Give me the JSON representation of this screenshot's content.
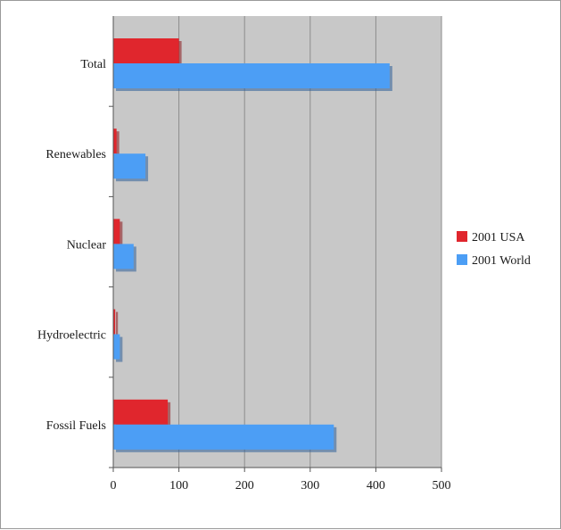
{
  "chart_data": {
    "type": "bar",
    "orientation": "horizontal",
    "title": "",
    "xlabel": "",
    "ylabel": "",
    "categories": [
      "Total",
      "Renewables",
      "Nuclear",
      "Hydroelectric",
      "Fossil Fuels"
    ],
    "series": [
      {
        "name": "2001 USA",
        "color": "#e0262d",
        "values": [
          100,
          5,
          10,
          3,
          83
        ]
      },
      {
        "name": "2001 World",
        "color": "#4c9ef5",
        "values": [
          421,
          49,
          31,
          10,
          336
        ]
      }
    ],
    "x_ticks": [
      "0",
      "100",
      "200",
      "300",
      "400",
      "500"
    ],
    "xlim": [
      0,
      500
    ],
    "grid": "vertical",
    "plot_background": "#c8c8c8",
    "legend_placement": "right"
  }
}
